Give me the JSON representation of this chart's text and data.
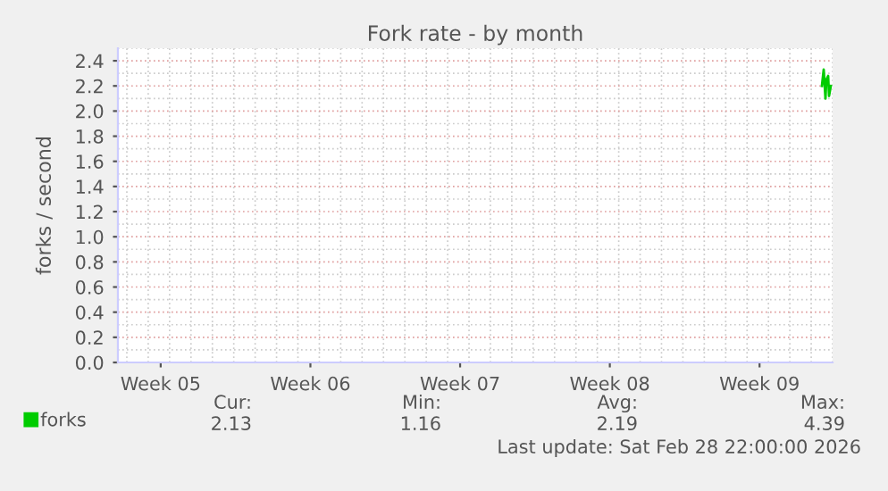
{
  "chart_data": {
    "type": "line",
    "title": "Fork rate - by month",
    "ylabel": "forks / second",
    "x": [
      "2026-02-28T12:00",
      "2026-02-28T14:00",
      "2026-02-28T16:00",
      "2026-02-28T17:00",
      "2026-02-28T19:00",
      "2026-02-28T20:00",
      "2026-02-28T22:00"
    ],
    "series": [
      {
        "name": "forks",
        "color": "#00cc00",
        "values": [
          2.2,
          2.33,
          2.1,
          2.25,
          2.28,
          2.12,
          2.2
        ]
      }
    ],
    "xlim": [
      "2026-01-26T14:00",
      "2026-03-01T00:00"
    ],
    "xticks": [
      {
        "value": "2026-01-28T14:00",
        "label": "Week 05"
      },
      {
        "value": "2026-02-04T14:00",
        "label": "Week 06"
      },
      {
        "value": "2026-02-11T14:00",
        "label": "Week 07"
      },
      {
        "value": "2026-02-18T14:00",
        "label": "Week 08"
      },
      {
        "value": "2026-02-25T14:00",
        "label": "Week 09"
      }
    ],
    "ylim": [
      0,
      2.5
    ],
    "yticks": [
      {
        "value": 0,
        "label": "0.0"
      },
      {
        "value": 0.2,
        "label": "0.2"
      },
      {
        "value": 0.4,
        "label": "0.4"
      },
      {
        "value": 0.6,
        "label": "0.6"
      },
      {
        "value": 0.8,
        "label": "0.8"
      },
      {
        "value": 1,
        "label": "1.0"
      },
      {
        "value": 1.2,
        "label": "1.2"
      },
      {
        "value": 1.4,
        "label": "1.4"
      },
      {
        "value": 1.6,
        "label": "1.6"
      },
      {
        "value": 1.8,
        "label": "1.8"
      },
      {
        "value": 2,
        "label": "2.0"
      },
      {
        "value": 2.2,
        "label": "2.2"
      },
      {
        "value": 2.4,
        "label": "2.4"
      }
    ],
    "grid": true,
    "legend": "bottom left",
    "marker": "none",
    "line_style": "solid",
    "annotations": [
      "Cur:",
      "2.13",
      "Min:",
      "1.16",
      "Avg:",
      "2.19",
      "Max:",
      "4.39",
      "Last update: Sat Feb 28 22:00:00 2026"
    ]
  }
}
